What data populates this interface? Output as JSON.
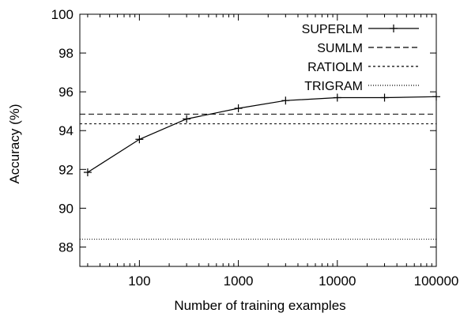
{
  "chart_data": {
    "type": "line",
    "xlabel": "Number of training examples",
    "ylabel": "Accuracy (%)",
    "xscale": "log",
    "xlim": [
      25,
      100000
    ],
    "ylim": [
      87,
      100
    ],
    "x_ticks": [
      100,
      1000,
      10000,
      100000
    ],
    "x_tick_labels": [
      "100",
      "1000",
      "10000",
      "100000"
    ],
    "y_ticks": [
      88,
      90,
      92,
      94,
      96,
      98,
      100
    ],
    "y_tick_labels": [
      "88",
      "90",
      "92",
      "94",
      "96",
      "98",
      "100"
    ],
    "grid": false,
    "legend_position": "top-right",
    "series": [
      {
        "name": "SUPERLM",
        "style": "solid-with-plus-markers",
        "x": [
          30,
          100,
          300,
          1000,
          3000,
          10000,
          30000,
          100000
        ],
        "y": [
          91.85,
          93.55,
          94.6,
          95.15,
          95.55,
          95.7,
          95.7,
          95.75
        ]
      },
      {
        "name": "SUMLM",
        "style": "dashed",
        "constant": 94.85
      },
      {
        "name": "RATIOLM",
        "style": "dotted-dense",
        "constant": 94.35
      },
      {
        "name": "TRIGRAM",
        "style": "dotted",
        "constant": 88.4
      }
    ]
  }
}
